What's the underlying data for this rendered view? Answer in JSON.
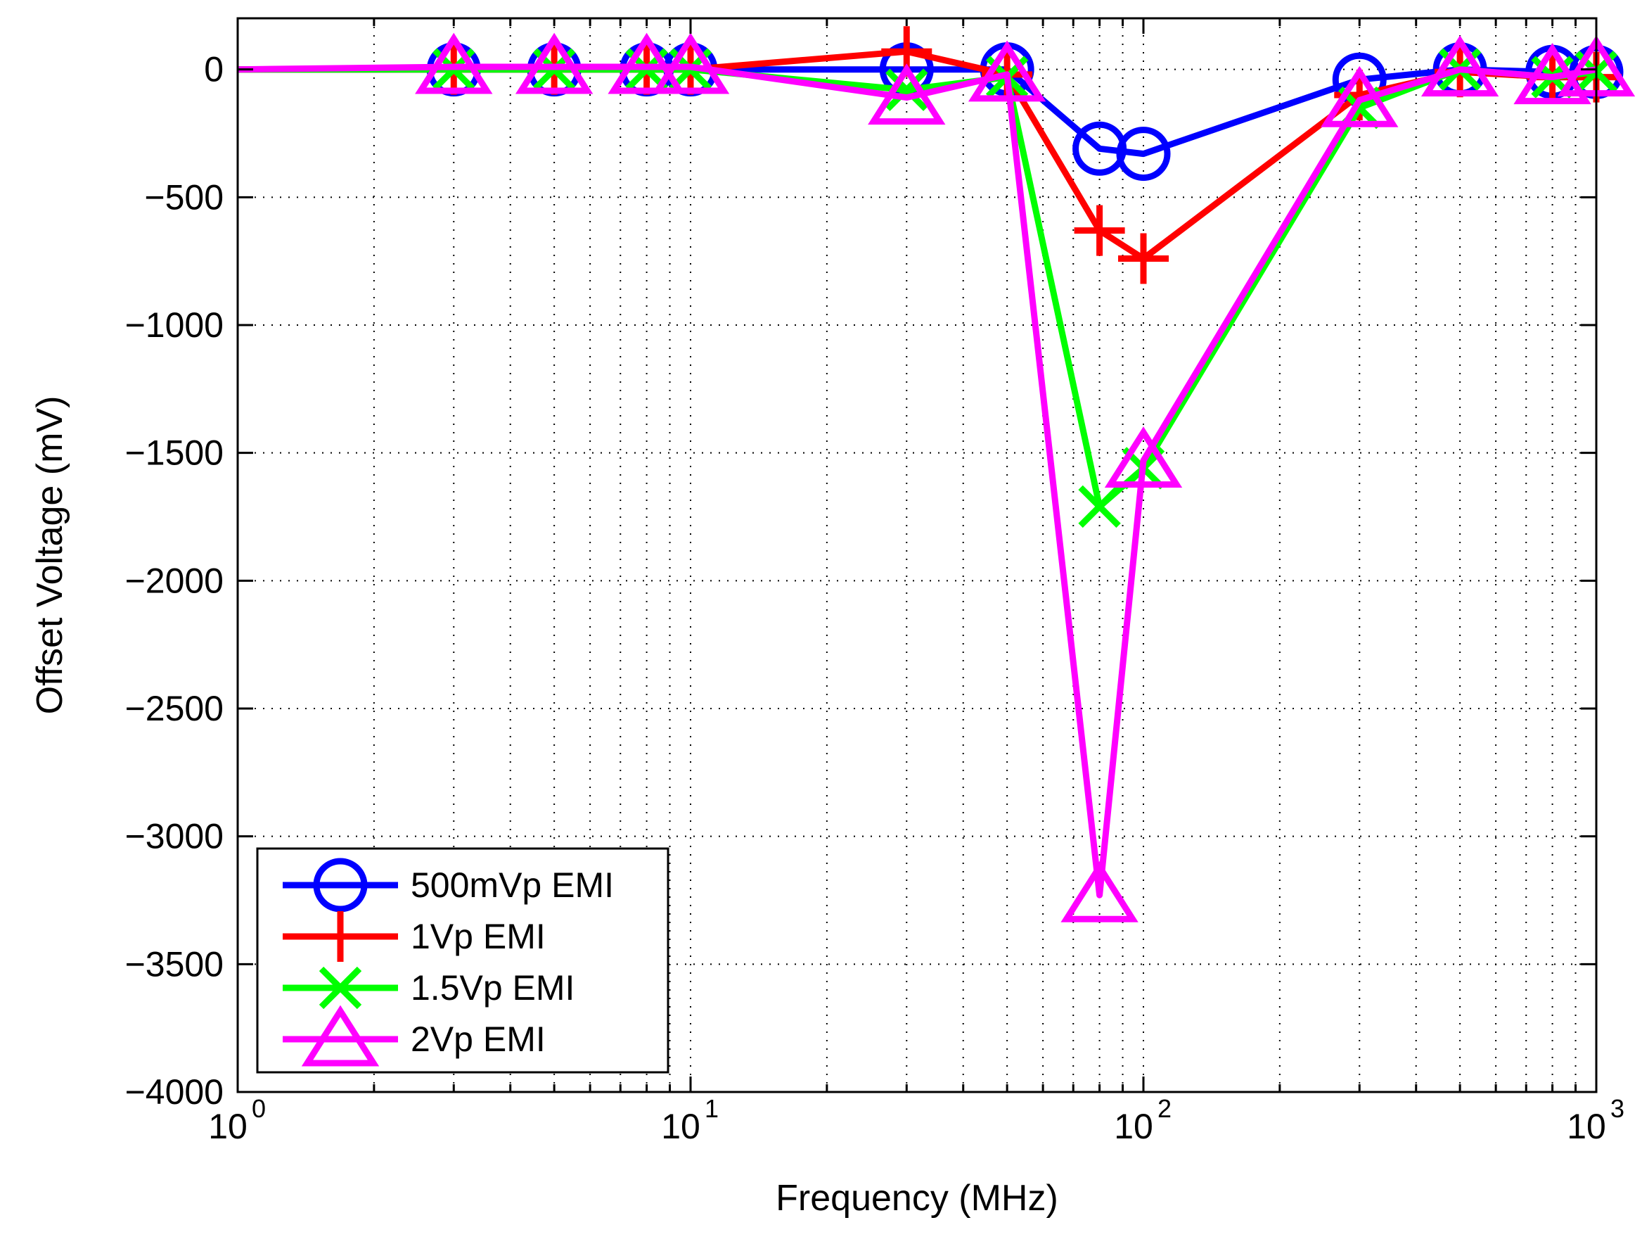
{
  "chart_data": {
    "type": "line",
    "title": "",
    "xlabel": "Frequency (MHz)",
    "ylabel": "Offset Voltage (mV)",
    "x_scale": "log",
    "xlim": [
      1,
      1000
    ],
    "ylim": [
      -4000,
      200
    ],
    "grid": true,
    "legend_position": "bottom-left",
    "x_ticks": [
      {
        "value": 1,
        "base": "10",
        "exp": "0"
      },
      {
        "value": 10,
        "base": "10",
        "exp": "1"
      },
      {
        "value": 100,
        "base": "10",
        "exp": "2"
      },
      {
        "value": 1000,
        "base": "10",
        "exp": "3"
      }
    ],
    "y_ticks": [
      {
        "value": 0,
        "label": "0"
      },
      {
        "value": -500,
        "label": "−500"
      },
      {
        "value": -1000,
        "label": "−1000"
      },
      {
        "value": -1500,
        "label": "−1500"
      },
      {
        "value": -2000,
        "label": "−2000"
      },
      {
        "value": -2500,
        "label": "−2500"
      },
      {
        "value": -3000,
        "label": "−3000"
      },
      {
        "value": -3500,
        "label": "−3500"
      },
      {
        "value": -4000,
        "label": "−4000"
      }
    ],
    "series": [
      {
        "name": "500mVp EMI",
        "color": "#0000ff",
        "marker": "circle",
        "x": [
          1,
          3,
          5,
          8,
          10,
          30,
          50,
          80,
          100,
          300,
          500,
          800,
          1000
        ],
        "y": [
          0,
          0,
          0,
          0,
          0,
          0,
          0,
          -310,
          -330,
          -40,
          0,
          -10,
          -10
        ]
      },
      {
        "name": "1Vp EMI",
        "color": "#ff0000",
        "marker": "plus",
        "x": [
          1,
          3,
          5,
          8,
          10,
          30,
          50,
          80,
          100,
          300,
          500,
          800,
          1000
        ],
        "y": [
          0,
          0,
          0,
          0,
          0,
          70,
          -20,
          -630,
          -740,
          -100,
          -10,
          -30,
          -30
        ]
      },
      {
        "name": "1.5Vp EMI",
        "color": "#00ff00",
        "marker": "x",
        "x": [
          1,
          3,
          5,
          8,
          10,
          30,
          50,
          80,
          100,
          300,
          500,
          800,
          1000
        ],
        "y": [
          0,
          0,
          0,
          0,
          0,
          -80,
          -30,
          -1710,
          -1560,
          -150,
          0,
          -30,
          -10
        ]
      },
      {
        "name": "2Vp EMI",
        "color": "#ff00ff",
        "marker": "triangle",
        "x": [
          1,
          3,
          5,
          8,
          10,
          30,
          50,
          80,
          100,
          300,
          500,
          800,
          1000
        ],
        "y": [
          0,
          10,
          10,
          10,
          10,
          -110,
          -20,
          -3230,
          -1530,
          -120,
          0,
          -30,
          0
        ]
      }
    ]
  }
}
